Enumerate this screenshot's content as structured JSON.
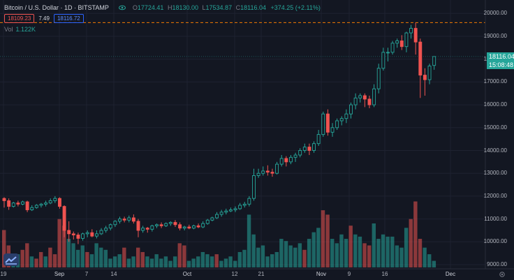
{
  "header": {
    "symbol": "Bitcoin / U.S. Dollar · 1D · BITSTAMP",
    "open_label": "O",
    "open": "17724.41",
    "high_label": "H",
    "high": "18130.00",
    "low_label": "L",
    "low": "17534.87",
    "close_label": "C",
    "close": "18116.04",
    "change": "+374.25 (+2.11%)"
  },
  "order": {
    "sell": "18109.23",
    "spread": "7.49",
    "buy": "18116.72"
  },
  "volume": {
    "label": "Vol",
    "value": "1.122K"
  },
  "price_tags": {
    "last": "18116.04",
    "countdown": "15:08:48"
  },
  "colors": {
    "up": "#26a69a",
    "down": "#ef5350",
    "dashed_high": "#f57c00",
    "bg": "#131722",
    "grid": "#1e2230"
  },
  "icons": {
    "eye": "eye-icon",
    "settings": "gear-icon",
    "logo": "tradingview-logo"
  },
  "chart_data": {
    "type": "candlestick",
    "y_axis": {
      "min": 9000,
      "max": 20000,
      "ticks": [
        "20000.00",
        "19000.00",
        "18000.00",
        "17000.00",
        "16000.00",
        "15000.00",
        "14000.00",
        "13000.00",
        "12000.00",
        "11000.00",
        "10000.00",
        "9000.00"
      ]
    },
    "x_axis": {
      "ticks": [
        "19",
        "Sep",
        "7",
        "14",
        "Oct",
        "12",
        "21",
        "Nov",
        "9",
        "16",
        "Dec"
      ]
    },
    "high_line": 19600,
    "candles": [
      [
        11900,
        11800,
        11950,
        11500
      ],
      [
        11800,
        11550,
        11900,
        11400
      ],
      [
        11550,
        11700,
        11750,
        11500
      ],
      [
        11700,
        11650,
        11800,
        11550
      ],
      [
        11650,
        11750,
        11800,
        11600
      ],
      [
        11750,
        11400,
        11800,
        11300
      ],
      [
        11400,
        11500,
        11600,
        11350
      ],
      [
        11500,
        11600,
        11650,
        11450
      ],
      [
        11600,
        11650,
        11700,
        11500
      ],
      [
        11650,
        11700,
        11800,
        11550
      ],
      [
        11700,
        11800,
        11900,
        11650
      ],
      [
        11800,
        11900,
        12000,
        11700
      ],
      [
        11900,
        11550,
        11950,
        11450
      ],
      [
        11550,
        10500,
        11600,
        10200
      ],
      [
        10500,
        10350,
        10900,
        10000
      ],
      [
        10350,
        10300,
        10450,
        10100
      ],
      [
        10300,
        10150,
        10400,
        9900
      ],
      [
        10150,
        10350,
        10400,
        10050
      ],
      [
        10350,
        10400,
        10500,
        10200
      ],
      [
        10400,
        10250,
        10550,
        10200
      ],
      [
        10250,
        10350,
        10500,
        10150
      ],
      [
        10350,
        10500,
        10600,
        10300
      ],
      [
        10500,
        10600,
        10700,
        10400
      ],
      [
        10600,
        10750,
        10800,
        10500
      ],
      [
        10750,
        10900,
        10950,
        10650
      ],
      [
        10900,
        11000,
        11100,
        10800
      ],
      [
        11000,
        10950,
        11100,
        10850
      ],
      [
        10950,
        11050,
        11150,
        10850
      ],
      [
        11050,
        10900,
        11200,
        10800
      ],
      [
        10900,
        10500,
        11000,
        10200
      ],
      [
        10500,
        10600,
        10700,
        10400
      ],
      [
        10600,
        10550,
        10650,
        10400
      ],
      [
        10550,
        10700,
        10750,
        10450
      ],
      [
        10700,
        10750,
        10800,
        10600
      ],
      [
        10750,
        10700,
        10850,
        10600
      ],
      [
        10700,
        10800,
        10850,
        10650
      ],
      [
        10800,
        10850,
        10900,
        10700
      ],
      [
        10850,
        10750,
        10950,
        10650
      ],
      [
        10750,
        10600,
        10850,
        10500
      ],
      [
        10600,
        10650,
        10700,
        10500
      ],
      [
        10650,
        10600,
        10750,
        10550
      ],
      [
        10600,
        10700,
        10750,
        10550
      ],
      [
        10700,
        10650,
        10800,
        10600
      ],
      [
        10650,
        10800,
        10900,
        10600
      ],
      [
        10800,
        10950,
        11000,
        10750
      ],
      [
        10950,
        11050,
        11100,
        10900
      ],
      [
        11050,
        11200,
        11300,
        11000
      ],
      [
        11200,
        11300,
        11400,
        11100
      ],
      [
        11300,
        11350,
        11450,
        11200
      ],
      [
        11350,
        11400,
        11500,
        11300
      ],
      [
        11400,
        11450,
        11550,
        11300
      ],
      [
        11450,
        11600,
        11700,
        11400
      ],
      [
        11600,
        11650,
        11750,
        11500
      ],
      [
        11650,
        11900,
        12000,
        11550
      ],
      [
        11900,
        12900,
        13200,
        11800
      ],
      [
        12900,
        13000,
        13200,
        12800
      ],
      [
        13000,
        13100,
        13300,
        12900
      ],
      [
        13100,
        13050,
        13350,
        12900
      ],
      [
        13050,
        13000,
        13200,
        12850
      ],
      [
        13000,
        13400,
        13500,
        12950
      ],
      [
        13400,
        13650,
        13800,
        13300
      ],
      [
        13650,
        13500,
        13750,
        13300
      ],
      [
        13500,
        13700,
        13800,
        13400
      ],
      [
        13700,
        13800,
        13900,
        13500
      ],
      [
        13800,
        14000,
        14100,
        13700
      ],
      [
        14000,
        14150,
        14300,
        13900
      ],
      [
        14150,
        14000,
        14300,
        13800
      ],
      [
        14000,
        14300,
        14400,
        13900
      ],
      [
        14300,
        14700,
        14900,
        14200
      ],
      [
        14700,
        15600,
        15700,
        14600
      ],
      [
        15600,
        14800,
        15800,
        14650
      ],
      [
        14800,
        15000,
        15200,
        14600
      ],
      [
        15000,
        15300,
        15400,
        14900
      ],
      [
        15300,
        15400,
        15500,
        15100
      ],
      [
        15400,
        15600,
        15800,
        15200
      ],
      [
        15600,
        16000,
        16100,
        15400
      ],
      [
        16000,
        16300,
        16500,
        15800
      ],
      [
        16300,
        16400,
        16500,
        16100
      ],
      [
        16400,
        16250,
        16500,
        15900
      ],
      [
        16250,
        16000,
        16400,
        15850
      ],
      [
        16000,
        16700,
        16900,
        15900
      ],
      [
        16700,
        17600,
        17800,
        16500
      ],
      [
        17600,
        18300,
        18500,
        17500
      ],
      [
        18300,
        18300,
        18500,
        17900
      ],
      [
        18300,
        18700,
        18800,
        18200
      ],
      [
        18700,
        18800,
        18900,
        18500
      ],
      [
        18800,
        18550,
        19050,
        18400
      ],
      [
        18550,
        19150,
        19200,
        18300
      ],
      [
        19150,
        19350,
        19500,
        18900
      ],
      [
        19350,
        18750,
        19600,
        18200
      ],
      [
        18750,
        17300,
        18900,
        16300
      ],
      [
        17300,
        17100,
        17600,
        16400
      ],
      [
        17100,
        17700,
        17800,
        16900
      ],
      [
        17724.41,
        18116.04,
        18130,
        17534.87
      ]
    ],
    "volumes": [
      [
        85,
        0
      ],
      [
        50,
        0
      ],
      [
        25,
        1
      ],
      [
        30,
        1
      ],
      [
        40,
        0
      ],
      [
        55,
        0
      ],
      [
        25,
        1
      ],
      [
        20,
        0
      ],
      [
        35,
        0
      ],
      [
        25,
        1
      ],
      [
        45,
        0
      ],
      [
        30,
        0
      ],
      [
        110,
        0
      ],
      [
        95,
        0
      ],
      [
        65,
        1
      ],
      [
        55,
        1
      ],
      [
        40,
        1
      ],
      [
        50,
        1
      ],
      [
        35,
        0
      ],
      [
        30,
        1
      ],
      [
        55,
        1
      ],
      [
        45,
        1
      ],
      [
        40,
        1
      ],
      [
        20,
        1
      ],
      [
        25,
        1
      ],
      [
        30,
        1
      ],
      [
        45,
        0
      ],
      [
        20,
        1
      ],
      [
        25,
        1
      ],
      [
        45,
        0
      ],
      [
        35,
        0
      ],
      [
        25,
        1
      ],
      [
        20,
        1
      ],
      [
        30,
        1
      ],
      [
        20,
        1
      ],
      [
        25,
        1
      ],
      [
        15,
        1
      ],
      [
        25,
        1
      ],
      [
        55,
        0
      ],
      [
        50,
        0
      ],
      [
        15,
        1
      ],
      [
        20,
        1
      ],
      [
        25,
        1
      ],
      [
        35,
        1
      ],
      [
        30,
        1
      ],
      [
        25,
        1
      ],
      [
        30,
        0
      ],
      [
        15,
        1
      ],
      [
        20,
        1
      ],
      [
        25,
        1
      ],
      [
        15,
        1
      ],
      [
        35,
        1
      ],
      [
        40,
        1
      ],
      [
        120,
        1
      ],
      [
        75,
        1
      ],
      [
        45,
        1
      ],
      [
        50,
        1
      ],
      [
        25,
        1
      ],
      [
        30,
        1
      ],
      [
        35,
        1
      ],
      [
        65,
        1
      ],
      [
        60,
        1
      ],
      [
        50,
        1
      ],
      [
        45,
        1
      ],
      [
        55,
        1
      ],
      [
        40,
        0
      ],
      [
        65,
        1
      ],
      [
        80,
        1
      ],
      [
        90,
        1
      ],
      [
        130,
        0
      ],
      [
        120,
        0
      ],
      [
        65,
        1
      ],
      [
        55,
        1
      ],
      [
        75,
        1
      ],
      [
        65,
        1
      ],
      [
        95,
        0
      ],
      [
        75,
        1
      ],
      [
        70,
        1
      ],
      [
        55,
        0
      ],
      [
        50,
        0
      ],
      [
        100,
        1
      ],
      [
        65,
        1
      ],
      [
        75,
        1
      ],
      [
        70,
        1
      ],
      [
        70,
        1
      ],
      [
        50,
        1
      ],
      [
        45,
        1
      ],
      [
        90,
        1
      ],
      [
        110,
        0
      ],
      [
        150,
        0
      ],
      [
        65,
        0
      ],
      [
        45,
        1
      ],
      [
        30,
        1
      ],
      [
        15,
        1
      ]
    ]
  }
}
